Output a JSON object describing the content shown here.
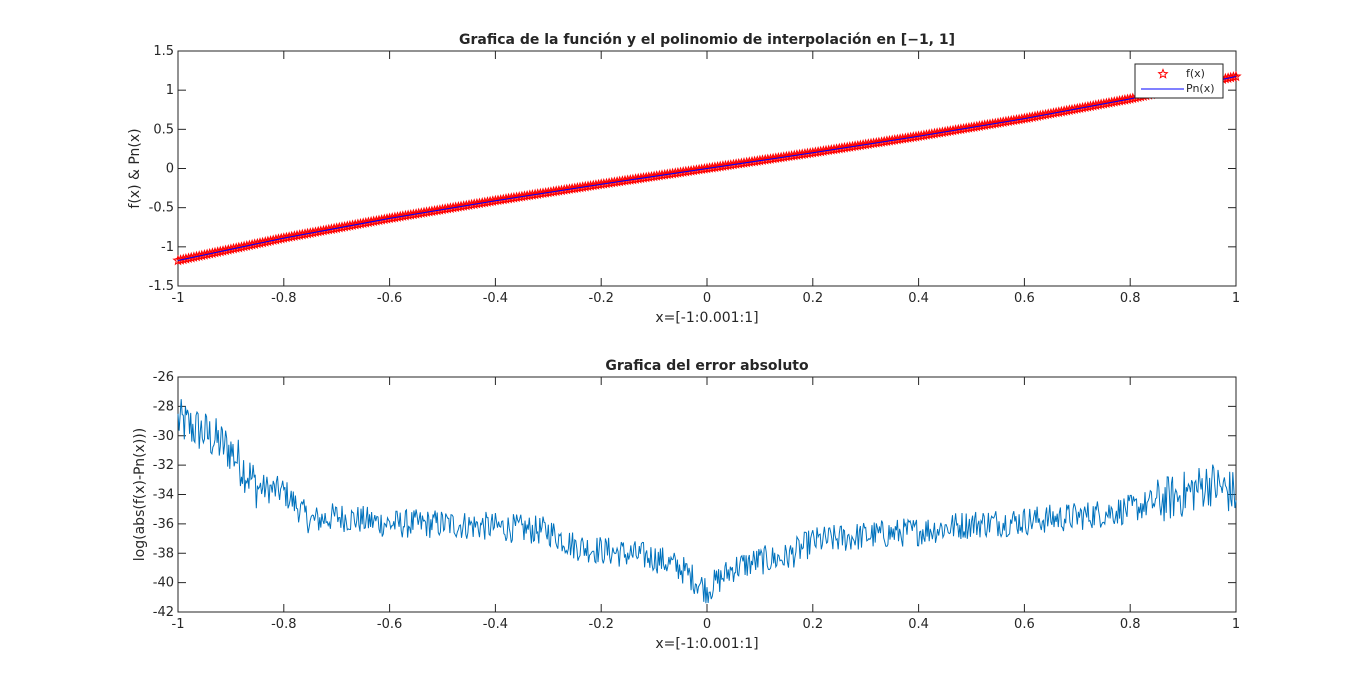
{
  "chart_data": [
    {
      "type": "line",
      "title": "Grafica de la función y el polinomio de interpolación en [−1, 1]",
      "xlabel": "x=[-1:0.001:1]",
      "ylabel": "f(x) & Pn(x)",
      "xlim": [
        -1,
        1
      ],
      "ylim": [
        -1.5,
        1.5
      ],
      "xticks": [
        "-1",
        "-0.8",
        "-0.6",
        "-0.4",
        "-0.2",
        "0",
        "0.2",
        "0.4",
        "0.6",
        "0.8",
        "1"
      ],
      "yticks": [
        "-1.5",
        "-1",
        "-0.5",
        "0",
        "0.5",
        "1",
        "1.5"
      ],
      "grid": false,
      "legend_position": "top-right",
      "series": [
        {
          "name": "f(x)",
          "style": "markers",
          "marker": "star",
          "color": "#ff0000",
          "x": [
            -1,
            -0.8,
            -0.6,
            -0.4,
            -0.2,
            0,
            0.2,
            0.4,
            0.6,
            0.8,
            1
          ],
          "values": [
            -1.175,
            -0.888,
            -0.637,
            -0.411,
            -0.201,
            0,
            0.201,
            0.411,
            0.637,
            0.888,
            1.175
          ]
        },
        {
          "name": "Pn(x)",
          "style": "line",
          "color": "#0000ff",
          "x": [
            -1,
            -0.8,
            -0.6,
            -0.4,
            -0.2,
            0,
            0.2,
            0.4,
            0.6,
            0.8,
            1
          ],
          "values": [
            -1.175,
            -0.888,
            -0.637,
            -0.411,
            -0.201,
            0,
            0.201,
            0.411,
            0.637,
            0.888,
            1.175
          ]
        }
      ]
    },
    {
      "type": "line",
      "title": "Grafica del error absoluto",
      "xlabel": "x=[-1:0.001:1]",
      "ylabel": "log(abs(f(x)-Pn(x)))",
      "xlim": [
        -1,
        1
      ],
      "ylim": [
        -42,
        -26
      ],
      "xticks": [
        "-1",
        "-0.8",
        "-0.6",
        "-0.4",
        "-0.2",
        "0",
        "0.2",
        "0.4",
        "0.6",
        "0.8",
        "1"
      ],
      "yticks": [
        "-42",
        "-40",
        "-38",
        "-36",
        "-34",
        "-32",
        "-30",
        "-28",
        "-26"
      ],
      "grid": false,
      "series": [
        {
          "color": "#0072bd",
          "x": [
            -1,
            -0.95,
            -0.9,
            -0.85,
            -0.8,
            -0.75,
            -0.7,
            -0.6,
            -0.5,
            -0.4,
            -0.3,
            -0.25,
            -0.2,
            -0.1,
            -0.05,
            0,
            0.05,
            0.1,
            0.15,
            0.2,
            0.3,
            0.4,
            0.5,
            0.6,
            0.7,
            0.8,
            0.85,
            0.9,
            0.95,
            1
          ],
          "values": [
            -29,
            -29.8,
            -31,
            -33.5,
            -33.8,
            -35.8,
            -35.5,
            -36,
            -36,
            -36.2,
            -36.5,
            -37.5,
            -37.8,
            -38.3,
            -39,
            -40.5,
            -39,
            -38.5,
            -38.3,
            -37.2,
            -36.8,
            -36.5,
            -36,
            -35.8,
            -35.5,
            -35,
            -34.5,
            -34,
            -33.2,
            -34
          ]
        }
      ]
    }
  ]
}
